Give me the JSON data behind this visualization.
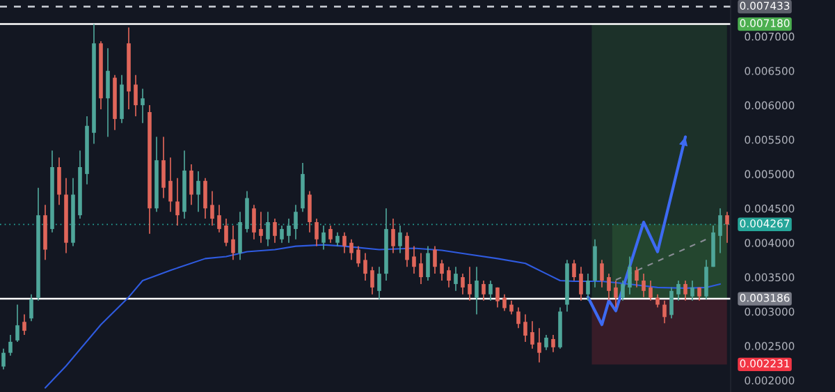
{
  "chart_data": {
    "type": "candlestick",
    "categories": [
      null,
      null,
      null,
      null,
      null,
      null,
      null,
      null,
      null,
      null,
      null,
      null,
      null,
      null,
      null,
      null,
      null,
      null,
      null,
      null,
      null,
      null,
      null,
      null,
      null,
      null,
      null,
      null,
      null,
      null,
      null,
      null,
      null,
      null,
      null,
      null,
      null,
      null,
      null,
      null,
      null,
      null,
      null,
      null,
      null,
      null,
      null,
      null,
      null,
      null,
      null,
      null,
      null,
      null,
      null,
      null,
      null,
      null,
      null,
      null,
      null,
      null,
      null,
      null,
      null,
      null,
      null,
      null,
      null,
      null,
      null,
      null,
      null,
      null,
      null,
      null,
      null,
      null,
      null,
      null,
      null,
      null,
      null,
      null,
      null,
      null,
      null,
      null,
      null,
      null,
      null,
      null,
      null,
      null,
      null,
      null,
      null,
      null,
      null,
      null,
      null,
      null,
      null,
      null,
      null
    ],
    "ohlc": [
      [
        0.0022,
        0.00246,
        0.00216,
        0.0024
      ],
      [
        0.0024,
        0.00266,
        0.00236,
        0.00256
      ],
      [
        0.00258,
        0.0031,
        0.00256,
        0.0028
      ],
      [
        0.00285,
        0.00296,
        0.00266,
        0.00272
      ],
      [
        0.0029,
        0.00325,
        0.00286,
        0.00318
      ],
      [
        0.0032,
        0.0048,
        0.00316,
        0.0044
      ],
      [
        0.0044,
        0.00455,
        0.00375,
        0.0039
      ],
      [
        0.0042,
        0.00534,
        0.00415,
        0.0051
      ],
      [
        0.0051,
        0.00524,
        0.00455,
        0.0047
      ],
      [
        0.0047,
        0.00494,
        0.00385,
        0.004
      ],
      [
        0.004,
        0.00494,
        0.00395,
        0.0047
      ],
      [
        0.0044,
        0.00534,
        0.00435,
        0.0051
      ],
      [
        0.005,
        0.00584,
        0.00485,
        0.0057
      ],
      [
        0.0056,
        0.00718,
        0.00544,
        0.0069
      ],
      [
        0.0069,
        0.00693,
        0.00594,
        0.0061
      ],
      [
        0.0061,
        0.00683,
        0.00554,
        0.0065
      ],
      [
        0.0064,
        0.00644,
        0.00564,
        0.0058
      ],
      [
        0.0058,
        0.00644,
        0.00574,
        0.0063
      ],
      [
        0.0069,
        0.00713,
        0.00594,
        0.0062
      ],
      [
        0.0063,
        0.00644,
        0.00584,
        0.006
      ],
      [
        0.006,
        0.00624,
        0.00574,
        0.0061
      ],
      [
        0.0059,
        0.006,
        0.00413,
        0.0045
      ],
      [
        0.0045,
        0.00554,
        0.00445,
        0.0052
      ],
      [
        0.0052,
        0.00554,
        0.00465,
        0.0048
      ],
      [
        0.0049,
        0.00524,
        0.00445,
        0.0046
      ],
      [
        0.0046,
        0.00494,
        0.00425,
        0.0044
      ],
      [
        0.00445,
        0.00534,
        0.00435,
        0.00505
      ],
      [
        0.00505,
        0.00514,
        0.00455,
        0.0047
      ],
      [
        0.0047,
        0.00504,
        0.00445,
        0.0049
      ],
      [
        0.0049,
        0.00494,
        0.00435,
        0.0045
      ],
      [
        0.00455,
        0.00475,
        0.00425,
        0.00435
      ],
      [
        0.0044,
        0.00455,
        0.00415,
        0.0042
      ],
      [
        0.00425,
        0.00435,
        0.00395,
        0.004
      ],
      [
        0.00405,
        0.00425,
        0.00375,
        0.00385
      ],
      [
        0.00385,
        0.00445,
        0.00375,
        0.0043
      ],
      [
        0.0042,
        0.00475,
        0.00415,
        0.00465
      ],
      [
        0.0045,
        0.00455,
        0.00405,
        0.00415
      ],
      [
        0.0042,
        0.00445,
        0.004,
        0.0041
      ],
      [
        0.00405,
        0.00445,
        0.00395,
        0.0043
      ],
      [
        0.0043,
        0.00435,
        0.004,
        0.0041
      ],
      [
        0.00405,
        0.00425,
        0.004,
        0.0042
      ],
      [
        0.0041,
        0.00435,
        0.004,
        0.00425
      ],
      [
        0.0042,
        0.00455,
        0.00405,
        0.00445
      ],
      [
        0.0045,
        0.00516,
        0.00445,
        0.005
      ],
      [
        0.0047,
        0.00475,
        0.00415,
        0.0043
      ],
      [
        0.0043,
        0.00435,
        0.00395,
        0.00405
      ],
      [
        0.004,
        0.00425,
        0.0039,
        0.00415
      ],
      [
        0.0042,
        0.00425,
        0.004,
        0.00405
      ],
      [
        0.004,
        0.00415,
        0.00395,
        0.0041
      ],
      [
        0.0041,
        0.00415,
        0.00385,
        0.00395
      ],
      [
        0.004,
        0.00405,
        0.00375,
        0.00385
      ],
      [
        0.0039,
        0.00395,
        0.00365,
        0.0037
      ],
      [
        0.00375,
        0.00385,
        0.00345,
        0.00355
      ],
      [
        0.0036,
        0.00365,
        0.00325,
        0.00335
      ],
      [
        0.0033,
        0.00365,
        0.00318,
        0.00355
      ],
      [
        0.00355,
        0.0045,
        0.00345,
        0.0042
      ],
      [
        0.0042,
        0.00435,
        0.00385,
        0.00395
      ],
      [
        0.00395,
        0.00425,
        0.00385,
        0.00415
      ],
      [
        0.0041,
        0.00415,
        0.00365,
        0.00375
      ],
      [
        0.0038,
        0.00395,
        0.00355,
        0.00365
      ],
      [
        0.0037,
        0.00385,
        0.0034,
        0.0035
      ],
      [
        0.0035,
        0.00395,
        0.00345,
        0.00385
      ],
      [
        0.0039,
        0.00395,
        0.00355,
        0.00365
      ],
      [
        0.0037,
        0.00375,
        0.00345,
        0.00355
      ],
      [
        0.0036,
        0.00365,
        0.00335,
        0.00345
      ],
      [
        0.0034,
        0.00365,
        0.0033,
        0.00355
      ],
      [
        0.0035,
        0.00355,
        0.00325,
        0.00335
      ],
      [
        0.0034,
        0.00365,
        0.00316,
        0.00325
      ],
      [
        0.0032,
        0.00365,
        0.00296,
        0.00345
      ],
      [
        0.0034,
        0.00345,
        0.00316,
        0.00325
      ],
      [
        0.00325,
        0.00345,
        0.00316,
        0.0034
      ],
      [
        0.00335,
        0.00335,
        0.00306,
        0.00315
      ],
      [
        0.0032,
        0.00325,
        0.00301,
        0.00305
      ],
      [
        0.0031,
        0.00316,
        0.00296,
        0.003
      ],
      [
        0.003,
        0.00306,
        0.00276,
        0.00282
      ],
      [
        0.00285,
        0.00296,
        0.00256,
        0.00265
      ],
      [
        0.0027,
        0.00286,
        0.00246,
        0.00252
      ],
      [
        0.00255,
        0.00276,
        0.00226,
        0.0024
      ],
      [
        0.00248,
        0.00266,
        0.00244,
        0.00262
      ],
      [
        0.0026,
        0.00266,
        0.00241,
        0.00248
      ],
      [
        0.00248,
        0.00306,
        0.00246,
        0.003
      ],
      [
        0.0031,
        0.00375,
        0.003,
        0.0037
      ],
      [
        0.0037,
        0.00375,
        0.00345,
        0.0035
      ],
      [
        0.00355,
        0.00365,
        0.00316,
        0.00325
      ],
      [
        0.00325,
        0.00355,
        0.00316,
        0.00345
      ],
      [
        0.00345,
        0.00405,
        0.00335,
        0.00395
      ],
      [
        0.0037,
        0.00375,
        0.00335,
        0.00345
      ],
      [
        0.0035,
        0.00355,
        0.00316,
        0.0033
      ],
      [
        0.00335,
        0.00345,
        0.00306,
        0.0032
      ],
      [
        0.0032,
        0.00345,
        0.00316,
        0.0034
      ],
      [
        0.00335,
        0.0038,
        0.00325,
        0.00365
      ],
      [
        0.0036,
        0.00365,
        0.00335,
        0.00345
      ],
      [
        0.00345,
        0.00355,
        0.00321,
        0.0033
      ],
      [
        0.00335,
        0.00345,
        0.00316,
        0.0032
      ],
      [
        0.0032,
        0.00325,
        0.00306,
        0.0031
      ],
      [
        0.0031,
        0.00316,
        0.00283,
        0.00292
      ],
      [
        0.00295,
        0.00335,
        0.0029,
        0.0033
      ],
      [
        0.00325,
        0.00345,
        0.00316,
        0.0034
      ],
      [
        0.0034,
        0.00345,
        0.00316,
        0.00325
      ],
      [
        0.00322,
        0.00345,
        0.00316,
        0.00335
      ],
      [
        0.00335,
        0.00335,
        0.00316,
        0.00322
      ],
      [
        0.00322,
        0.00375,
        0.00318,
        0.00365
      ],
      [
        0.00365,
        0.00425,
        0.00365,
        0.00415
      ],
      [
        0.0041,
        0.0045,
        0.00385,
        0.0044
      ],
      [
        0.0044,
        0.00445,
        0.004,
        0.004267
      ]
    ],
    "series": [
      {
        "type": "line",
        "color": "#2f5be0",
        "line_style": "solid",
        "values": [
          null,
          null,
          null,
          null,
          null,
          null,
          0.00189,
          null,
          null,
          0.00221,
          null,
          null,
          null,
          null,
          0.00281,
          null,
          null,
          null,
          0.00321,
          null,
          0.00345,
          null,
          null,
          null,
          0.0036,
          null,
          null,
          null,
          null,
          0.00377,
          null,
          null,
          0.0038,
          null,
          null,
          0.00387,
          null,
          null,
          null,
          0.0039,
          null,
          null,
          0.00395,
          null,
          null,
          null,
          0.00397,
          null,
          null,
          0.00395,
          null,
          null,
          null,
          null,
          0.0039,
          null,
          null,
          null,
          null,
          0.00392,
          null,
          null,
          null,
          0.00389,
          null,
          null,
          null,
          0.00383,
          null,
          null,
          null,
          0.00377,
          null,
          null,
          null,
          0.0037,
          null,
          null,
          0.00355,
          null,
          0.00345,
          null,
          0.00344,
          null,
          null,
          null,
          0.00344,
          null,
          null,
          0.00341,
          null,
          null,
          null,
          null,
          0.00335,
          null,
          null,
          null,
          0.00334,
          null,
          null,
          0.00335,
          null,
          0.0034,
          null
        ]
      },
      {
        "type": "line",
        "color": "#8a8d96",
        "line_style": "dashed",
        "values": [
          null,
          null,
          null,
          null,
          null,
          null,
          null,
          null,
          null,
          null,
          null,
          null,
          null,
          null,
          null,
          null,
          null,
          null,
          null,
          null,
          null,
          null,
          null,
          null,
          null,
          null,
          null,
          null,
          null,
          null,
          null,
          null,
          null,
          null,
          null,
          null,
          null,
          null,
          null,
          null,
          null,
          null,
          null,
          null,
          null,
          null,
          null,
          null,
          null,
          null,
          null,
          null,
          null,
          null,
          null,
          null,
          null,
          null,
          null,
          null,
          null,
          null,
          null,
          null,
          null,
          null,
          null,
          null,
          null,
          null,
          null,
          null,
          null,
          null,
          null,
          null,
          null,
          null,
          null,
          null,
          null,
          null,
          null,
          null,
          null,
          null,
          null,
          null,
          0.00346,
          null,
          null,
          null,
          null,
          null,
          null,
          null,
          null,
          null,
          null,
          null,
          null,
          0.00405,
          null,
          null,
          null
        ]
      },
      {
        "type": "line",
        "color": "#3d6af2",
        "line_style": "solid",
        "values": [
          null,
          null,
          null,
          null,
          null,
          null,
          null,
          null,
          null,
          null,
          null,
          null,
          null,
          null,
          null,
          null,
          null,
          null,
          null,
          null,
          null,
          null,
          null,
          null,
          null,
          null,
          null,
          null,
          null,
          null,
          null,
          null,
          null,
          null,
          null,
          null,
          null,
          null,
          null,
          null,
          null,
          null,
          null,
          null,
          null,
          null,
          null,
          null,
          null,
          null,
          null,
          null,
          null,
          null,
          null,
          null,
          null,
          null,
          null,
          null,
          null,
          null,
          null,
          null,
          null,
          null,
          null,
          null,
          null,
          null,
          null,
          null,
          null,
          null,
          null,
          null,
          null,
          null,
          null,
          null,
          null,
          null,
          null,
          null,
          0.00321,
          null,
          0.00281,
          0.00316,
          0.00301,
          null,
          null,
          null,
          0.0043,
          null,
          0.00387,
          null,
          null,
          null,
          0.00554,
          null,
          null,
          null,
          null,
          null,
          null
        ]
      }
    ],
    "ylim": [
      0.00183,
      0.00753
    ],
    "yticks": [
      {
        "value": 0.002,
        "label": "0.002000"
      },
      {
        "value": 0.0025,
        "label": "0.002500"
      },
      {
        "value": 0.003,
        "label": "0.003000"
      },
      {
        "value": 0.0035,
        "label": "0.003500"
      },
      {
        "value": 0.004,
        "label": "0.004000"
      },
      {
        "value": 0.0045,
        "label": "0.004500"
      },
      {
        "value": 0.005,
        "label": "0.005000"
      },
      {
        "value": 0.0055,
        "label": "0.005500"
      },
      {
        "value": 0.006,
        "label": "0.006000"
      },
      {
        "value": 0.0065,
        "label": "0.006500"
      },
      {
        "value": 0.007,
        "label": "0.007000"
      }
    ],
    "ref_lines": [
      {
        "axis": "y",
        "value": 0.007433,
        "label": "0.007433",
        "color": "#d0d3da",
        "line_style": "dashed"
      },
      {
        "axis": "y",
        "value": 0.00718,
        "label": "0.007180",
        "color": "#ffffff",
        "line_style": "solid"
      },
      {
        "axis": "y",
        "value": 0.004267,
        "label": "0.004267",
        "color": "#26a69a",
        "line_style": "dotted"
      },
      {
        "axis": "y",
        "value": 0.003186,
        "label": "0.003186",
        "color": "#ffffff",
        "line_style": "solid"
      }
    ],
    "bands": [
      {
        "axis": "y",
        "from": 0.003186,
        "to": 0.00718,
        "color": "#4caf50"
      },
      {
        "axis": "y",
        "from": 0.002231,
        "to": 0.003186,
        "color": "#f23645",
        "label": "0.002231"
      },
      {
        "axis": "y",
        "from": 0.003186,
        "to": 0.004267,
        "color": "#4caf50"
      }
    ],
    "tick_labels": "y"
  }
}
